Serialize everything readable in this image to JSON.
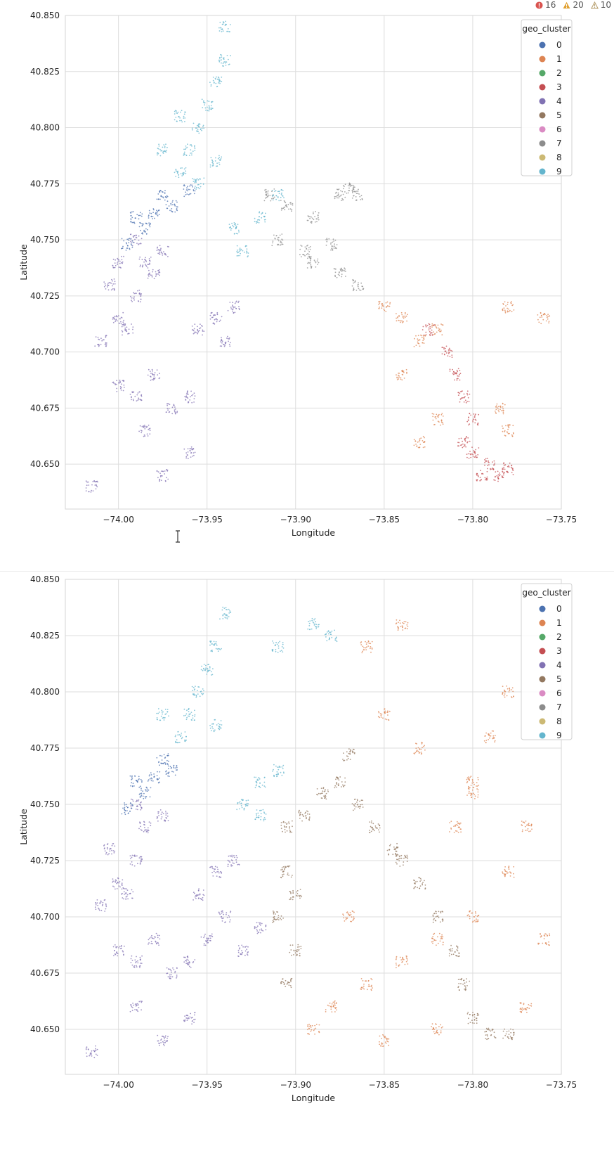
{
  "status": {
    "errors": "16",
    "warnings": "20",
    "infos": "10",
    "colors": {
      "error": "#d9534f",
      "warning": "#e0a030",
      "info": "#b8a070"
    }
  },
  "palette": [
    "#4c72b0",
    "#dd8452",
    "#55a868",
    "#c44e52",
    "#8172b3",
    "#937860",
    "#da8bc3",
    "#8c8c8c",
    "#ccb974",
    "#64b5cd"
  ],
  "chart_data": [
    {
      "type": "scatter",
      "title": "",
      "xlabel": "Longitude",
      "ylabel": "Latitude",
      "xlim": [
        -74.03,
        -73.75
      ],
      "ylim": [
        40.63,
        40.85
      ],
      "xticks": [
        "−74.00",
        "−73.95",
        "−73.90",
        "−73.85",
        "−73.80",
        "−73.75"
      ],
      "xtick_values": [
        -74.0,
        -73.95,
        -73.9,
        -73.85,
        -73.8,
        -73.75
      ],
      "yticks": [
        "40.650",
        "40.675",
        "40.700",
        "40.725",
        "40.750",
        "40.775",
        "40.800",
        "40.825",
        "40.850"
      ],
      "ytick_values": [
        40.65,
        40.675,
        40.7,
        40.725,
        40.75,
        40.775,
        40.8,
        40.825,
        40.85
      ],
      "grid": true,
      "legend": {
        "title": "geo_cluster",
        "placement": "top-right",
        "labels": [
          "0",
          "1",
          "2",
          "3",
          "4",
          "5",
          "6",
          "7",
          "8",
          "9"
        ]
      },
      "series": [
        {
          "name": "4",
          "points": [
            [
              -74.01,
              40.705
            ],
            [
              -74.0,
              40.715
            ],
            [
              -73.99,
              40.725
            ],
            [
              -73.985,
              40.74
            ],
            [
              -73.99,
              40.75
            ],
            [
              -74.0,
              40.74
            ],
            [
              -74.005,
              40.73
            ],
            [
              -73.975,
              40.745
            ],
            [
              -73.98,
              40.735
            ],
            [
              -73.995,
              40.71
            ],
            [
              -73.99,
              40.68
            ],
            [
              -74.0,
              40.685
            ],
            [
              -73.98,
              40.69
            ],
            [
              -73.97,
              40.675
            ],
            [
              -73.985,
              40.665
            ],
            [
              -73.96,
              40.68
            ],
            [
              -73.955,
              40.71
            ],
            [
              -73.945,
              40.715
            ],
            [
              -73.94,
              40.705
            ],
            [
              -73.935,
              40.72
            ],
            [
              -74.015,
              40.64
            ],
            [
              -73.975,
              40.645
            ],
            [
              -73.96,
              40.655
            ]
          ]
        },
        {
          "name": "0",
          "points": [
            [
              -73.985,
              40.755
            ],
            [
              -73.98,
              40.762
            ],
            [
              -73.99,
              40.76
            ],
            [
              -73.975,
              40.77
            ],
            [
              -73.97,
              40.765
            ],
            [
              -73.995,
              40.748
            ],
            [
              -73.96,
              40.772
            ]
          ]
        },
        {
          "name": "9",
          "points": [
            [
              -73.965,
              40.78
            ],
            [
              -73.96,
              40.79
            ],
            [
              -73.955,
              40.8
            ],
            [
              -73.95,
              40.81
            ],
            [
              -73.945,
              40.82
            ],
            [
              -73.94,
              40.83
            ],
            [
              -73.955,
              40.775
            ],
            [
              -73.945,
              40.785
            ],
            [
              -73.975,
              40.79
            ],
            [
              -73.965,
              40.805
            ],
            [
              -73.94,
              40.845
            ],
            [
              -73.935,
              40.755
            ],
            [
              -73.92,
              40.76
            ],
            [
              -73.93,
              40.745
            ],
            [
              -73.91,
              40.77
            ]
          ]
        },
        {
          "name": "7",
          "points": [
            [
              -73.915,
              40.77
            ],
            [
              -73.905,
              40.765
            ],
            [
              -73.89,
              40.76
            ],
            [
              -73.875,
              40.77
            ],
            [
              -73.87,
              40.773
            ],
            [
              -73.865,
              40.77
            ],
            [
              -73.91,
              40.75
            ],
            [
              -73.895,
              40.745
            ],
            [
              -73.88,
              40.748
            ],
            [
              -73.875,
              40.735
            ],
            [
              -73.89,
              40.74
            ],
            [
              -73.865,
              40.73
            ]
          ]
        },
        {
          "name": "1",
          "points": [
            [
              -73.85,
              40.72
            ],
            [
              -73.84,
              40.715
            ],
            [
              -73.83,
              40.705
            ],
            [
              -73.82,
              40.71
            ],
            [
              -73.78,
              40.72
            ],
            [
              -73.76,
              40.715
            ],
            [
              -73.84,
              40.69
            ],
            [
              -73.82,
              40.67
            ],
            [
              -73.83,
              40.66
            ],
            [
              -73.78,
              40.665
            ],
            [
              -73.785,
              40.675
            ]
          ]
        },
        {
          "name": "3",
          "points": [
            [
              -73.825,
              40.71
            ],
            [
              -73.815,
              40.7
            ],
            [
              -73.81,
              40.69
            ],
            [
              -73.805,
              40.68
            ],
            [
              -73.8,
              40.67
            ],
            [
              -73.805,
              40.66
            ],
            [
              -73.8,
              40.655
            ],
            [
              -73.79,
              40.65
            ],
            [
              -73.785,
              40.645
            ],
            [
              -73.78,
              40.648
            ],
            [
              -73.795,
              40.645
            ]
          ]
        }
      ]
    },
    {
      "type": "scatter",
      "title": "",
      "xlabel": "Longitude",
      "ylabel": "Latitude",
      "xlim": [
        -74.03,
        -73.75
      ],
      "ylim": [
        40.63,
        40.85
      ],
      "xticks": [
        "−74.00",
        "−73.95",
        "−73.90",
        "−73.85",
        "−73.80",
        "−73.75"
      ],
      "xtick_values": [
        -74.0,
        -73.95,
        -73.9,
        -73.85,
        -73.8,
        -73.75
      ],
      "yticks": [
        "40.650",
        "40.675",
        "40.700",
        "40.725",
        "40.750",
        "40.775",
        "40.800",
        "40.825",
        "40.850"
      ],
      "ytick_values": [
        40.65,
        40.675,
        40.7,
        40.725,
        40.75,
        40.775,
        40.8,
        40.825,
        40.85
      ],
      "grid": true,
      "legend": {
        "title": "geo_cluster",
        "placement": "top-right",
        "labels": [
          "0",
          "1",
          "2",
          "3",
          "4",
          "5",
          "6",
          "7",
          "8",
          "9"
        ]
      },
      "series": [
        {
          "name": "4",
          "points": [
            [
              -74.01,
              40.705
            ],
            [
              -74.0,
              40.715
            ],
            [
              -73.99,
              40.725
            ],
            [
              -73.985,
              40.74
            ],
            [
              -73.99,
              40.75
            ],
            [
              -74.005,
              40.73
            ],
            [
              -73.975,
              40.745
            ],
            [
              -73.995,
              40.71
            ],
            [
              -73.99,
              40.68
            ],
            [
              -74.0,
              40.685
            ],
            [
              -73.98,
              40.69
            ],
            [
              -73.97,
              40.675
            ],
            [
              -73.96,
              40.68
            ],
            [
              -73.95,
              40.69
            ],
            [
              -73.94,
              40.7
            ],
            [
              -73.93,
              40.685
            ],
            [
              -73.92,
              40.695
            ],
            [
              -73.955,
              40.71
            ],
            [
              -73.945,
              40.72
            ],
            [
              -73.935,
              40.725
            ],
            [
              -74.015,
              40.64
            ],
            [
              -73.975,
              40.645
            ],
            [
              -73.96,
              40.655
            ],
            [
              -73.99,
              40.66
            ]
          ]
        },
        {
          "name": "0",
          "points": [
            [
              -73.985,
              40.755
            ],
            [
              -73.98,
              40.762
            ],
            [
              -73.99,
              40.76
            ],
            [
              -73.975,
              40.77
            ],
            [
              -73.97,
              40.765
            ],
            [
              -73.995,
              40.748
            ]
          ]
        },
        {
          "name": "9",
          "points": [
            [
              -73.965,
              40.78
            ],
            [
              -73.96,
              40.79
            ],
            [
              -73.955,
              40.8
            ],
            [
              -73.95,
              40.81
            ],
            [
              -73.945,
              40.82
            ],
            [
              -73.94,
              40.835
            ],
            [
              -73.945,
              40.785
            ],
            [
              -73.975,
              40.79
            ],
            [
              -73.92,
              40.76
            ],
            [
              -73.91,
              40.765
            ],
            [
              -73.93,
              40.75
            ],
            [
              -73.92,
              40.745
            ],
            [
              -73.91,
              40.82
            ],
            [
              -73.89,
              40.83
            ],
            [
              -73.88,
              40.825
            ]
          ]
        },
        {
          "name": "5",
          "points": [
            [
              -73.905,
              40.74
            ],
            [
              -73.895,
              40.745
            ],
            [
              -73.885,
              40.755
            ],
            [
              -73.875,
              40.76
            ],
            [
              -73.87,
              40.772
            ],
            [
              -73.865,
              40.75
            ],
            [
              -73.855,
              40.74
            ],
            [
              -73.845,
              40.73
            ],
            [
              -73.84,
              40.725
            ],
            [
              -73.905,
              40.72
            ],
            [
              -73.9,
              40.71
            ],
            [
              -73.91,
              40.7
            ],
            [
              -73.9,
              40.685
            ],
            [
              -73.905,
              40.67
            ],
            [
              -73.83,
              40.715
            ],
            [
              -73.82,
              40.7
            ],
            [
              -73.81,
              40.685
            ],
            [
              -73.805,
              40.67
            ],
            [
              -73.8,
              40.655
            ],
            [
              -73.79,
              40.648
            ],
            [
              -73.78,
              40.648
            ]
          ]
        },
        {
          "name": "1",
          "points": [
            [
              -73.88,
              40.66
            ],
            [
              -73.86,
              40.67
            ],
            [
              -73.84,
              40.68
            ],
            [
              -73.82,
              40.69
            ],
            [
              -73.8,
              40.7
            ],
            [
              -73.78,
              40.72
            ],
            [
              -73.77,
              40.74
            ],
            [
              -73.8,
              40.76
            ],
            [
              -73.83,
              40.775
            ],
            [
              -73.85,
              40.79
            ],
            [
              -73.86,
              40.82
            ],
            [
              -73.84,
              40.83
            ],
            [
              -73.79,
              40.78
            ],
            [
              -73.78,
              40.8
            ],
            [
              -73.76,
              40.69
            ],
            [
              -73.77,
              40.66
            ],
            [
              -73.82,
              40.65
            ],
            [
              -73.85,
              40.645
            ],
            [
              -73.89,
              40.65
            ],
            [
              -73.87,
              40.7
            ],
            [
              -73.81,
              40.74
            ],
            [
              -73.8,
              40.755
            ]
          ]
        }
      ]
    }
  ]
}
